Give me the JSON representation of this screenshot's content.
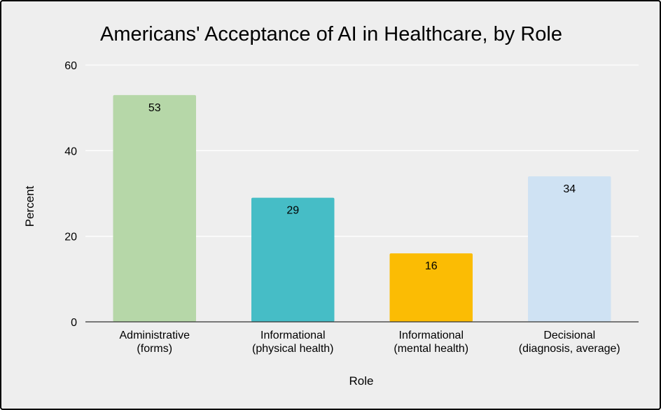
{
  "chart_data": {
    "type": "bar",
    "title": "Americans' Acceptance of AI in Healthcare, by Role",
    "xlabel": "Role",
    "ylabel": "Percent",
    "ylim": [
      0,
      60
    ],
    "yticks": [
      0,
      20,
      40,
      60
    ],
    "grid": true,
    "categories": [
      [
        "Administrative",
        "(forms)"
      ],
      [
        "Informational",
        "(physical health)"
      ],
      [
        "Informational",
        "(mental health)"
      ],
      [
        "Decisional",
        "(diagnosis, average)"
      ]
    ],
    "values": [
      53,
      29,
      16,
      34
    ],
    "data_labels": [
      "53",
      "29",
      "16",
      "34"
    ],
    "colors": [
      "#b6d7a8",
      "#46bdc6",
      "#fbbc04",
      "#cfe2f3"
    ]
  },
  "colors": {
    "background": "#eeeeee",
    "gridline": "#ffffff",
    "axis": "#333333",
    "text": "#000000"
  }
}
